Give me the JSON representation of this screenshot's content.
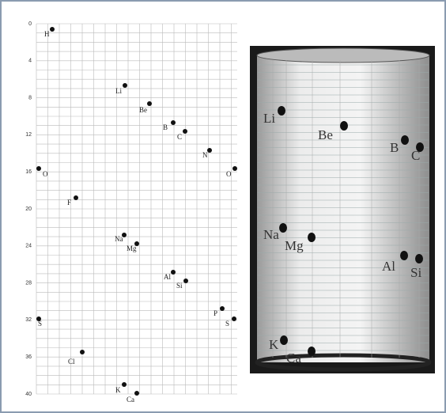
{
  "grid_panel": {
    "axis_labels": [
      "0",
      "4",
      "8",
      "12",
      "16",
      "20",
      "24",
      "28",
      "32",
      "36",
      "40"
    ],
    "elements": [
      "H",
      "Li",
      "Be",
      "B",
      "C",
      "N",
      "O",
      "O",
      "F",
      "Na",
      "Mg",
      "Al",
      "Si",
      "P",
      "S",
      "S",
      "Cl",
      "K",
      "Ca"
    ]
  },
  "photo_panel": {
    "elements": [
      "Li",
      "Be",
      "B",
      "C",
      "Na",
      "Mg",
      "Al",
      "Si",
      "K",
      "Ca"
    ]
  }
}
